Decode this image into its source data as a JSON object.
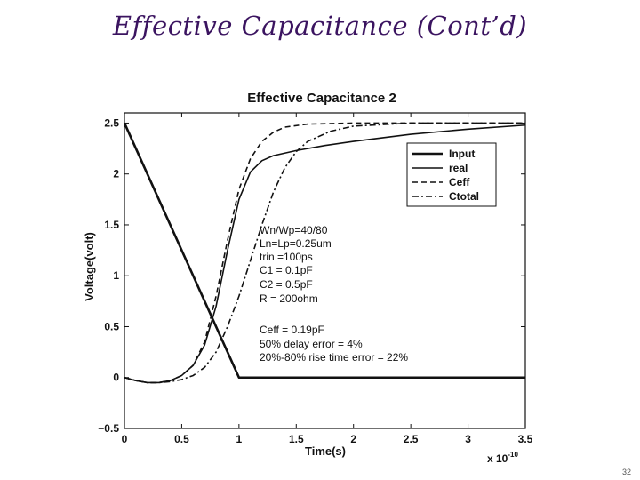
{
  "slide": {
    "title": "Effective Capacitance (Cont’d)",
    "number": "32"
  },
  "chart_data": {
    "type": "line",
    "title": "Effective Capacitance 2",
    "xlabel": "Time(s)",
    "ylabel": "Voltage(volt)",
    "x_multiplier_label": "x 10",
    "x_multiplier_exponent": "-10",
    "xlim": [
      0,
      3.5
    ],
    "ylim": [
      -0.5,
      2.6
    ],
    "xticks": [
      0,
      0.5,
      1,
      1.5,
      2,
      2.5,
      3,
      3.5
    ],
    "xtick_labels": [
      "0",
      "0.5",
      "1",
      "1.5",
      "2",
      "2.5",
      "3",
      "3.5"
    ],
    "yticks": [
      -0.5,
      0,
      0.5,
      1,
      1.5,
      2,
      2.5
    ],
    "ytick_labels": [
      "−0.5",
      "0",
      "0.5",
      "1",
      "1.5",
      "2",
      "2.5"
    ],
    "legend": {
      "placement": "top-right",
      "entries": [
        {
          "label": "Input",
          "style": "solid-thick"
        },
        {
          "label": "real",
          "style": "solid"
        },
        {
          "label": "Ceff",
          "style": "dashed"
        },
        {
          "label": "Ctotal",
          "style": "dashdot"
        }
      ]
    },
    "annotations": {
      "params": [
        "Wn/Wp=40/80",
        "Ln=Lp=0.25um",
        "trin =100ps",
        "C1 = 0.1pF",
        "C2 = 0.5pF",
        "R = 200ohm"
      ],
      "results": [
        "Ceff = 0.19pF",
        "50% delay error = 4%",
        "20%-80% rise time error = 22%"
      ]
    },
    "series": [
      {
        "name": "Input",
        "style": "solid-thick",
        "points": [
          [
            0,
            2.5
          ],
          [
            1.0,
            0.0
          ],
          [
            3.5,
            0.0
          ]
        ]
      },
      {
        "name": "real",
        "style": "solid",
        "points": [
          [
            0,
            0.0
          ],
          [
            0.1,
            -0.03
          ],
          [
            0.2,
            -0.05
          ],
          [
            0.3,
            -0.05
          ],
          [
            0.4,
            -0.03
          ],
          [
            0.5,
            0.02
          ],
          [
            0.6,
            0.12
          ],
          [
            0.7,
            0.32
          ],
          [
            0.8,
            0.7
          ],
          [
            0.9,
            1.25
          ],
          [
            1.0,
            1.75
          ],
          [
            1.1,
            2.02
          ],
          [
            1.2,
            2.13
          ],
          [
            1.3,
            2.18
          ],
          [
            1.5,
            2.23
          ],
          [
            1.75,
            2.28
          ],
          [
            2.0,
            2.32
          ],
          [
            2.5,
            2.39
          ],
          [
            3.0,
            2.44
          ],
          [
            3.5,
            2.48
          ]
        ]
      },
      {
        "name": "Ceff",
        "style": "dashed",
        "points": [
          [
            0,
            0.0
          ],
          [
            0.1,
            -0.03
          ],
          [
            0.2,
            -0.05
          ],
          [
            0.3,
            -0.05
          ],
          [
            0.4,
            -0.03
          ],
          [
            0.5,
            0.02
          ],
          [
            0.6,
            0.12
          ],
          [
            0.7,
            0.35
          ],
          [
            0.8,
            0.8
          ],
          [
            0.9,
            1.35
          ],
          [
            1.0,
            1.85
          ],
          [
            1.1,
            2.15
          ],
          [
            1.2,
            2.32
          ],
          [
            1.3,
            2.41
          ],
          [
            1.4,
            2.46
          ],
          [
            1.6,
            2.49
          ],
          [
            2.0,
            2.5
          ],
          [
            3.5,
            2.5
          ]
        ]
      },
      {
        "name": "Ctotal",
        "style": "dashdot",
        "points": [
          [
            0,
            0.0
          ],
          [
            0.1,
            -0.03
          ],
          [
            0.2,
            -0.05
          ],
          [
            0.3,
            -0.05
          ],
          [
            0.4,
            -0.04
          ],
          [
            0.5,
            -0.02
          ],
          [
            0.6,
            0.02
          ],
          [
            0.7,
            0.1
          ],
          [
            0.8,
            0.25
          ],
          [
            0.9,
            0.5
          ],
          [
            1.0,
            0.8
          ],
          [
            1.1,
            1.15
          ],
          [
            1.2,
            1.5
          ],
          [
            1.3,
            1.82
          ],
          [
            1.4,
            2.06
          ],
          [
            1.5,
            2.22
          ],
          [
            1.6,
            2.32
          ],
          [
            1.8,
            2.42
          ],
          [
            2.0,
            2.47
          ],
          [
            2.5,
            2.5
          ],
          [
            3.5,
            2.5
          ]
        ]
      }
    ]
  }
}
